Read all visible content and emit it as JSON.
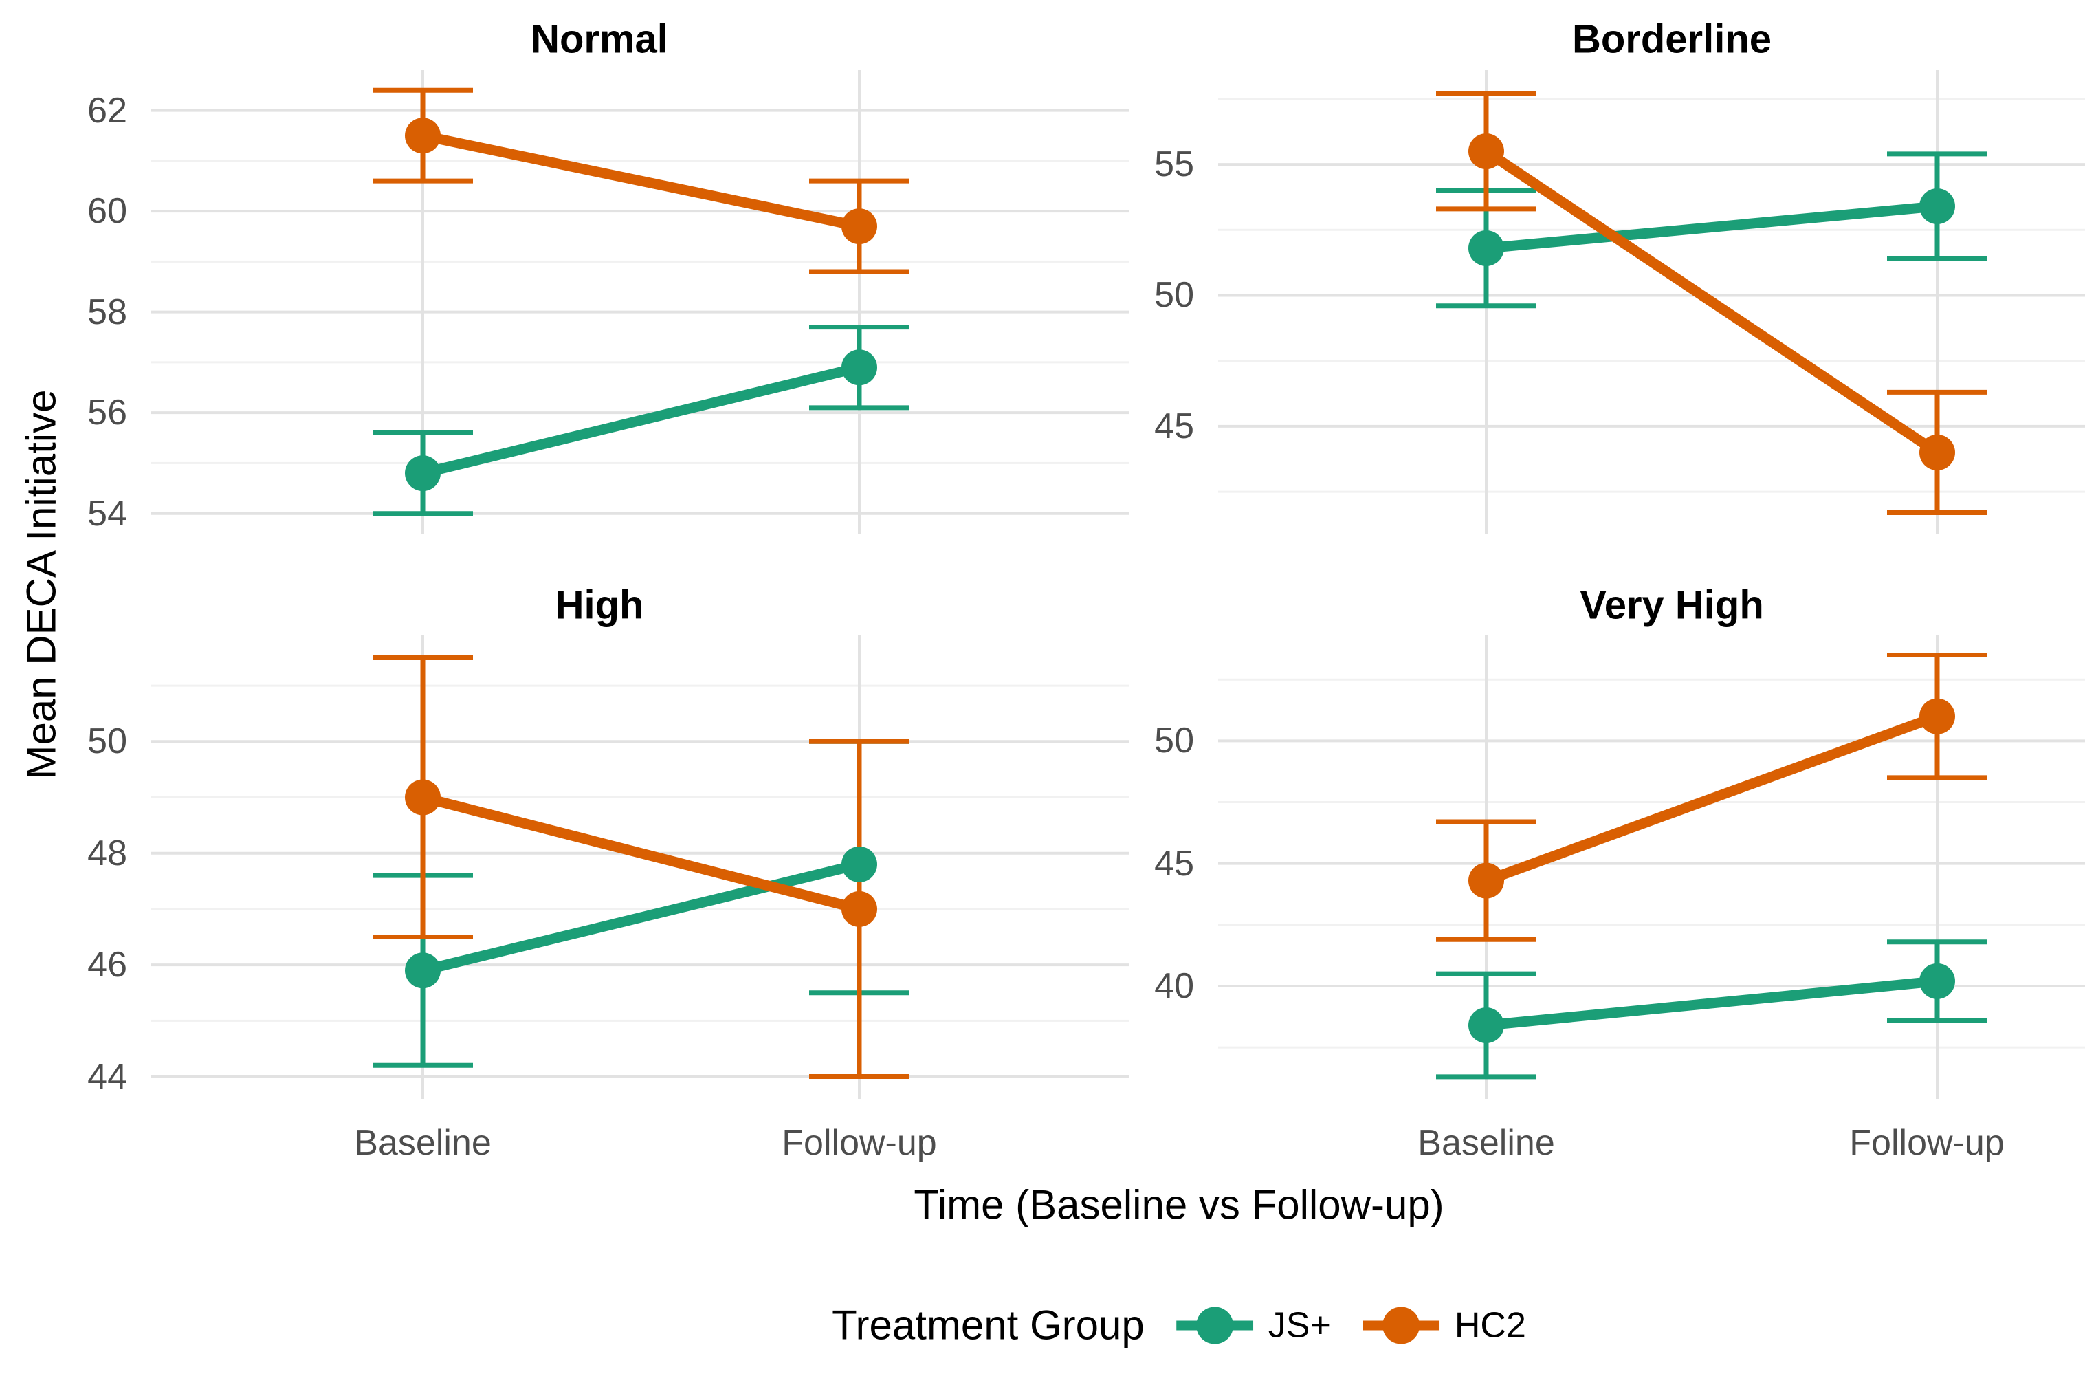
{
  "figure": {
    "x_axis_title": "Time (Baseline vs Follow-up)",
    "y_axis_title": "Mean DECA Initiative",
    "legend": {
      "title": "Treatment Group",
      "items": [
        {
          "label": "JS+",
          "color": "#1B9E77"
        },
        {
          "label": "HC2",
          "color": "#D95F02"
        }
      ]
    }
  },
  "chart_data": {
    "type": "line",
    "subtype": "point-range-interaction-plot",
    "facet_layout": "2x2",
    "grid": true,
    "legend_position": "bottom",
    "x_categories": [
      "Baseline",
      "Follow-up"
    ],
    "xlabel": "Time (Baseline vs Follow-up)",
    "ylabel": "Mean DECA Initiative",
    "series_colors": {
      "JS+": "#1B9E77",
      "HC2": "#D95F02"
    },
    "panels": [
      {
        "title": "Normal",
        "ylim": [
          53.6,
          62.8
        ],
        "major_ticks": [
          54,
          56,
          58,
          60,
          62
        ],
        "minor_ticks": [
          55,
          57,
          59,
          61
        ],
        "series": [
          {
            "name": "JS+",
            "color": "#1B9E77",
            "points": [
              {
                "x": "Baseline",
                "mean": 54.8,
                "lower": 54.0,
                "upper": 55.6
              },
              {
                "x": "Follow-up",
                "mean": 56.9,
                "lower": 56.1,
                "upper": 57.7
              }
            ]
          },
          {
            "name": "HC2",
            "color": "#D95F02",
            "points": [
              {
                "x": "Baseline",
                "mean": 61.5,
                "lower": 60.6,
                "upper": 62.4
              },
              {
                "x": "Follow-up",
                "mean": 59.7,
                "lower": 58.8,
                "upper": 60.6
              }
            ]
          }
        ]
      },
      {
        "title": "Borderline",
        "ylim": [
          40.9,
          58.6
        ],
        "major_ticks": [
          45,
          50,
          55
        ],
        "minor_ticks": [
          42.5,
          47.5,
          52.5,
          57.5
        ],
        "series": [
          {
            "name": "JS+",
            "color": "#1B9E77",
            "points": [
              {
                "x": "Baseline",
                "mean": 51.8,
                "lower": 49.6,
                "upper": 54.0
              },
              {
                "x": "Follow-up",
                "mean": 53.4,
                "lower": 51.4,
                "upper": 55.4
              }
            ]
          },
          {
            "name": "HC2",
            "color": "#D95F02",
            "points": [
              {
                "x": "Baseline",
                "mean": 55.5,
                "lower": 53.3,
                "upper": 57.7
              },
              {
                "x": "Follow-up",
                "mean": 44.0,
                "lower": 41.7,
                "upper": 46.3
              }
            ]
          }
        ]
      },
      {
        "title": "High",
        "ylim": [
          43.6,
          51.9
        ],
        "major_ticks": [
          44,
          46,
          48,
          50
        ],
        "minor_ticks": [
          45,
          47,
          49,
          51
        ],
        "series": [
          {
            "name": "JS+",
            "color": "#1B9E77",
            "points": [
              {
                "x": "Baseline",
                "mean": 45.9,
                "lower": 44.2,
                "upper": 47.6
              },
              {
                "x": "Follow-up",
                "mean": 47.8,
                "lower": 45.5,
                "upper": 50.0
              }
            ]
          },
          {
            "name": "HC2",
            "color": "#D95F02",
            "points": [
              {
                "x": "Baseline",
                "mean": 49.0,
                "lower": 46.5,
                "upper": 51.5
              },
              {
                "x": "Follow-up",
                "mean": 47.0,
                "lower": 44.0,
                "upper": 50.0
              }
            ]
          }
        ]
      },
      {
        "title": "Very High",
        "ylim": [
          35.4,
          54.3
        ],
        "major_ticks": [
          40,
          45,
          50
        ],
        "minor_ticks": [
          37.5,
          42.5,
          47.5,
          52.5
        ],
        "series": [
          {
            "name": "JS+",
            "color": "#1B9E77",
            "points": [
              {
                "x": "Baseline",
                "mean": 38.4,
                "lower": 36.3,
                "upper": 40.5
              },
              {
                "x": "Follow-up",
                "mean": 40.2,
                "lower": 38.6,
                "upper": 41.8
              }
            ]
          },
          {
            "name": "HC2",
            "color": "#D95F02",
            "points": [
              {
                "x": "Baseline",
                "mean": 44.3,
                "lower": 41.9,
                "upper": 46.7
              },
              {
                "x": "Follow-up",
                "mean": 51.0,
                "lower": 48.5,
                "upper": 53.5
              }
            ]
          }
        ]
      }
    ]
  }
}
